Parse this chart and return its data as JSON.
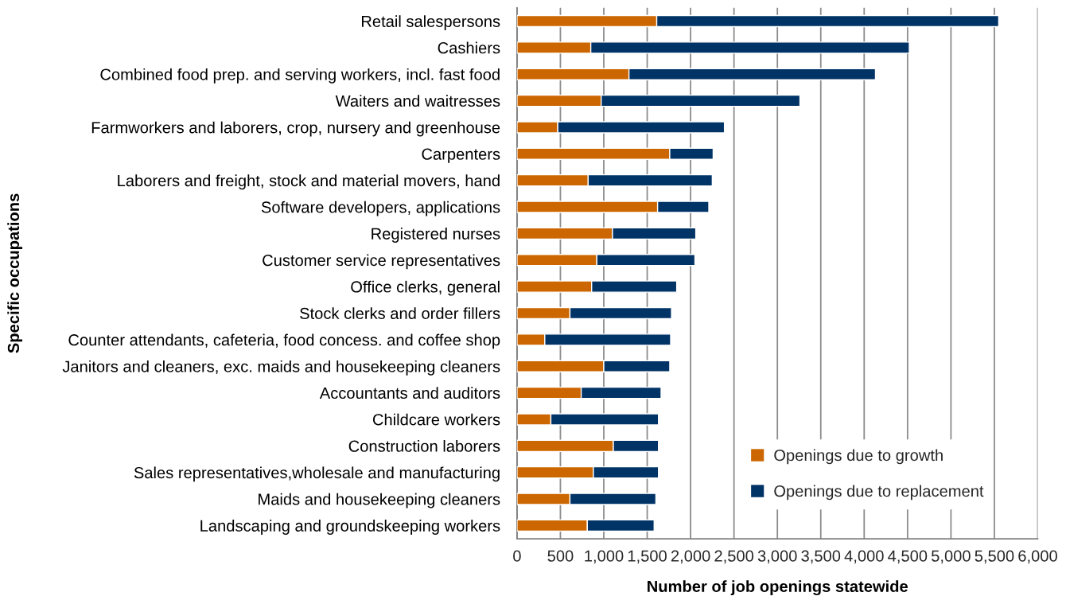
{
  "chart_data": {
    "type": "bar",
    "orientation": "horizontal",
    "stacked": true,
    "xlabel": "Number of job openings statewide",
    "ylabel": "Specific occupations",
    "categories": [
      "Retail salespersons",
      "Cashiers",
      "Combined food prep. and serving workers, incl. fast food",
      "Waiters and waitresses",
      "Farmworkers and laborers, crop, nursery and greenhouse",
      "Carpenters",
      "Laborers and freight, stock and material movers, hand",
      "Software developers, applications",
      "Registered nurses",
      "Customer service representatives",
      "Office clerks, general",
      "Stock clerks and order fillers",
      "Counter attendants, cafeteria, food concess. and coffee shop",
      "Janitors and cleaners, exc. maids and housekeeping cleaners",
      "Accountants and auditors",
      "Childcare workers",
      "Construction laborers",
      "Sales representatives,wholesale and manufacturing",
      "Maids and housekeeping cleaners",
      "Landscaping and groundskeeping workers"
    ],
    "series": [
      {
        "name": "Openings due to growth",
        "color": "#cc6600",
        "values": [
          1610,
          850,
          1290,
          970,
          470,
          1760,
          820,
          1620,
          1100,
          920,
          860,
          610,
          320,
          1000,
          740,
          390,
          1110,
          880,
          610,
          810
        ]
      },
      {
        "name": "Openings due to replacement",
        "color": "#003366",
        "values": [
          3940,
          3670,
          2840,
          2290,
          1920,
          500,
          1430,
          590,
          960,
          1130,
          980,
          1170,
          1450,
          760,
          920,
          1240,
          520,
          750,
          990,
          770
        ]
      }
    ],
    "xlim": [
      0,
      6000
    ],
    "xticks": [
      0,
      500,
      {
        "value": 1000,
        "label": "1,000"
      },
      {
        "value": 1500,
        "label": "1,500"
      },
      {
        "value": 2000,
        "label": "2,000"
      },
      {
        "value": 2500,
        "label": "2,500"
      },
      {
        "value": 3000,
        "label": "3,000"
      },
      {
        "value": 3500,
        "label": "3,500"
      },
      {
        "value": 4000,
        "label": "4,000"
      },
      {
        "value": 4500,
        "label": "4,500"
      },
      {
        "value": 5000,
        "label": "5,000"
      },
      {
        "value": 5500,
        "label": "5,500"
      },
      {
        "value": 6000,
        "label": "6,000"
      }
    ],
    "grid": "x",
    "legend": "bottom right"
  }
}
